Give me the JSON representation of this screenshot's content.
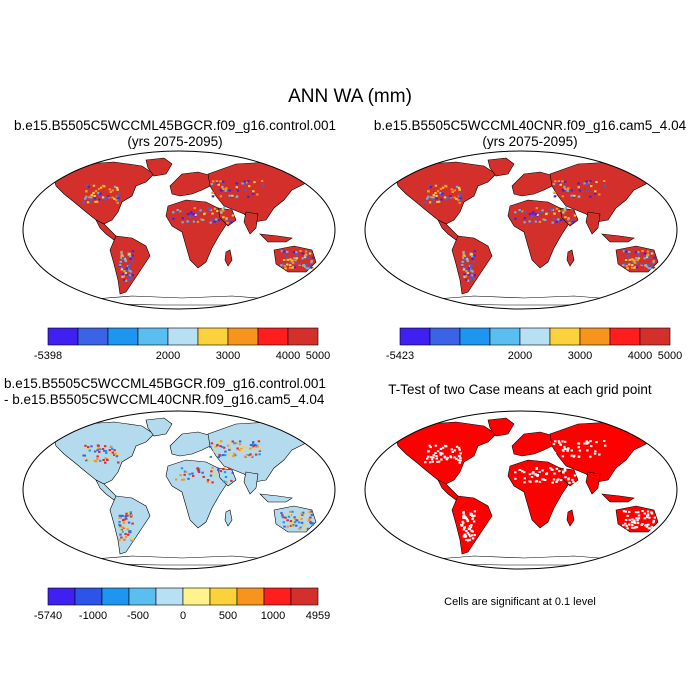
{
  "title": "ANN WA (mm)",
  "panels": [
    {
      "id": "case1",
      "title_line1": "b.e15.B5505C5WCCML45BGCR.f09_g16.control.001",
      "title_line2": "(yrs 2075-2095)",
      "fill": "#d3302c",
      "colorbar": {
        "colors": [
          "#4020f0",
          "#3c62e6",
          "#1e96f0",
          "#5abef0",
          "#b8e0f4",
          "#fcd23c",
          "#f7941e",
          "#ff1e1e",
          "#d3302c"
        ],
        "labels": [
          "-5398",
          "2000",
          "3000",
          "4000",
          "5000"
        ]
      }
    },
    {
      "id": "case2",
      "title_line1": "b.e15.B5505C5WCCML40CNR.f09_g16.cam5_4.04",
      "title_line2": "(yrs 2075-2095)",
      "fill": "#d3302c",
      "colorbar": {
        "colors": [
          "#4020f0",
          "#3c62e6",
          "#1e96f0",
          "#5abef0",
          "#b8e0f4",
          "#fcd23c",
          "#f7941e",
          "#ff1e1e",
          "#d3302c"
        ],
        "labels": [
          "-5423",
          "2000",
          "3000",
          "4000",
          "5000"
        ]
      }
    },
    {
      "id": "diff",
      "title_line1": "b.e15.B5505C5WCCML45BGCR.f09_g16.control.001",
      "title_line2": "- b.e15.B5505C5WCCML40CNR.f09_g16.cam5_4.04",
      "fill": "#b4daee",
      "colorbar": {
        "colors": [
          "#4020f0",
          "#2c54e8",
          "#1e96f0",
          "#5abef0",
          "#b8e0f4",
          "#fff48c",
          "#fcd23c",
          "#f7941e",
          "#ff1e1e",
          "#d3302c"
        ],
        "labels": [
          "-5740",
          "-1000",
          "-500",
          "0",
          "500",
          "1000",
          "4959"
        ]
      }
    },
    {
      "id": "ttest",
      "title_line1": "T-Test of two Case means at each grid point",
      "fill": "#ff0000",
      "note": "Cells are significant at 0.1 level"
    }
  ]
}
